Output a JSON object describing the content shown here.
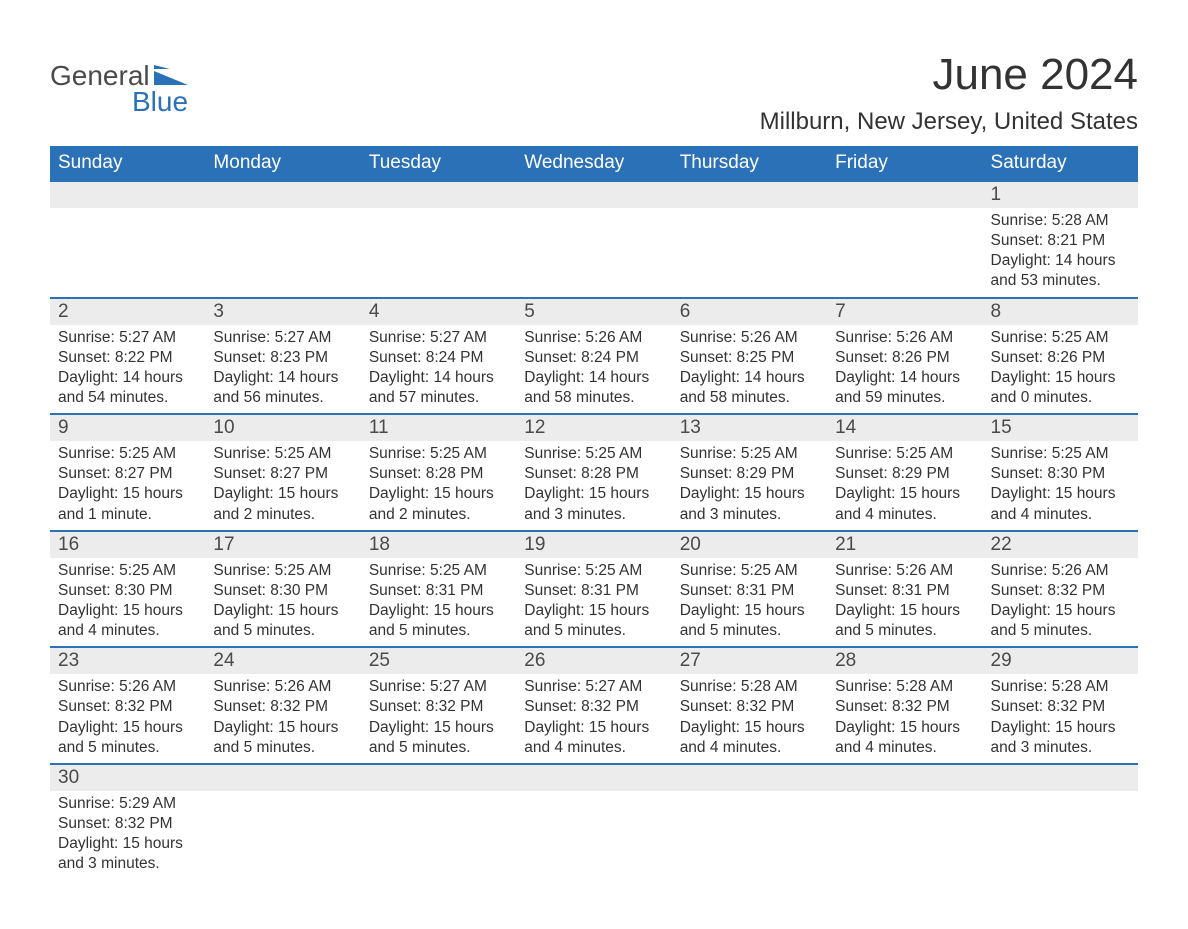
{
  "logo": {
    "word1": "General",
    "word2": "Blue"
  },
  "title": "June 2024",
  "location": "Millburn, New Jersey, United States",
  "colors": {
    "header_bg": "#2b71b8",
    "header_text": "#ffffff",
    "daynum_bg": "#ececec",
    "border": "#2b71b8",
    "logo_gray": "#4a4a4a",
    "logo_blue": "#2b71b8"
  },
  "columns": [
    "Sunday",
    "Monday",
    "Tuesday",
    "Wednesday",
    "Thursday",
    "Friday",
    "Saturday"
  ],
  "weeks": [
    [
      null,
      null,
      null,
      null,
      null,
      null,
      {
        "n": "1",
        "sr": "Sunrise: 5:28 AM",
        "ss": "Sunset: 8:21 PM",
        "d1": "Daylight: 14 hours",
        "d2": "and 53 minutes."
      }
    ],
    [
      {
        "n": "2",
        "sr": "Sunrise: 5:27 AM",
        "ss": "Sunset: 8:22 PM",
        "d1": "Daylight: 14 hours",
        "d2": "and 54 minutes."
      },
      {
        "n": "3",
        "sr": "Sunrise: 5:27 AM",
        "ss": "Sunset: 8:23 PM",
        "d1": "Daylight: 14 hours",
        "d2": "and 56 minutes."
      },
      {
        "n": "4",
        "sr": "Sunrise: 5:27 AM",
        "ss": "Sunset: 8:24 PM",
        "d1": "Daylight: 14 hours",
        "d2": "and 57 minutes."
      },
      {
        "n": "5",
        "sr": "Sunrise: 5:26 AM",
        "ss": "Sunset: 8:24 PM",
        "d1": "Daylight: 14 hours",
        "d2": "and 58 minutes."
      },
      {
        "n": "6",
        "sr": "Sunrise: 5:26 AM",
        "ss": "Sunset: 8:25 PM",
        "d1": "Daylight: 14 hours",
        "d2": "and 58 minutes."
      },
      {
        "n": "7",
        "sr": "Sunrise: 5:26 AM",
        "ss": "Sunset: 8:26 PM",
        "d1": "Daylight: 14 hours",
        "d2": "and 59 minutes."
      },
      {
        "n": "8",
        "sr": "Sunrise: 5:25 AM",
        "ss": "Sunset: 8:26 PM",
        "d1": "Daylight: 15 hours",
        "d2": "and 0 minutes."
      }
    ],
    [
      {
        "n": "9",
        "sr": "Sunrise: 5:25 AM",
        "ss": "Sunset: 8:27 PM",
        "d1": "Daylight: 15 hours",
        "d2": "and 1 minute."
      },
      {
        "n": "10",
        "sr": "Sunrise: 5:25 AM",
        "ss": "Sunset: 8:27 PM",
        "d1": "Daylight: 15 hours",
        "d2": "and 2 minutes."
      },
      {
        "n": "11",
        "sr": "Sunrise: 5:25 AM",
        "ss": "Sunset: 8:28 PM",
        "d1": "Daylight: 15 hours",
        "d2": "and 2 minutes."
      },
      {
        "n": "12",
        "sr": "Sunrise: 5:25 AM",
        "ss": "Sunset: 8:28 PM",
        "d1": "Daylight: 15 hours",
        "d2": "and 3 minutes."
      },
      {
        "n": "13",
        "sr": "Sunrise: 5:25 AM",
        "ss": "Sunset: 8:29 PM",
        "d1": "Daylight: 15 hours",
        "d2": "and 3 minutes."
      },
      {
        "n": "14",
        "sr": "Sunrise: 5:25 AM",
        "ss": "Sunset: 8:29 PM",
        "d1": "Daylight: 15 hours",
        "d2": "and 4 minutes."
      },
      {
        "n": "15",
        "sr": "Sunrise: 5:25 AM",
        "ss": "Sunset: 8:30 PM",
        "d1": "Daylight: 15 hours",
        "d2": "and 4 minutes."
      }
    ],
    [
      {
        "n": "16",
        "sr": "Sunrise: 5:25 AM",
        "ss": "Sunset: 8:30 PM",
        "d1": "Daylight: 15 hours",
        "d2": "and 4 minutes."
      },
      {
        "n": "17",
        "sr": "Sunrise: 5:25 AM",
        "ss": "Sunset: 8:30 PM",
        "d1": "Daylight: 15 hours",
        "d2": "and 5 minutes."
      },
      {
        "n": "18",
        "sr": "Sunrise: 5:25 AM",
        "ss": "Sunset: 8:31 PM",
        "d1": "Daylight: 15 hours",
        "d2": "and 5 minutes."
      },
      {
        "n": "19",
        "sr": "Sunrise: 5:25 AM",
        "ss": "Sunset: 8:31 PM",
        "d1": "Daylight: 15 hours",
        "d2": "and 5 minutes."
      },
      {
        "n": "20",
        "sr": "Sunrise: 5:25 AM",
        "ss": "Sunset: 8:31 PM",
        "d1": "Daylight: 15 hours",
        "d2": "and 5 minutes."
      },
      {
        "n": "21",
        "sr": "Sunrise: 5:26 AM",
        "ss": "Sunset: 8:31 PM",
        "d1": "Daylight: 15 hours",
        "d2": "and 5 minutes."
      },
      {
        "n": "22",
        "sr": "Sunrise: 5:26 AM",
        "ss": "Sunset: 8:32 PM",
        "d1": "Daylight: 15 hours",
        "d2": "and 5 minutes."
      }
    ],
    [
      {
        "n": "23",
        "sr": "Sunrise: 5:26 AM",
        "ss": "Sunset: 8:32 PM",
        "d1": "Daylight: 15 hours",
        "d2": "and 5 minutes."
      },
      {
        "n": "24",
        "sr": "Sunrise: 5:26 AM",
        "ss": "Sunset: 8:32 PM",
        "d1": "Daylight: 15 hours",
        "d2": "and 5 minutes."
      },
      {
        "n": "25",
        "sr": "Sunrise: 5:27 AM",
        "ss": "Sunset: 8:32 PM",
        "d1": "Daylight: 15 hours",
        "d2": "and 5 minutes."
      },
      {
        "n": "26",
        "sr": "Sunrise: 5:27 AM",
        "ss": "Sunset: 8:32 PM",
        "d1": "Daylight: 15 hours",
        "d2": "and 4 minutes."
      },
      {
        "n": "27",
        "sr": "Sunrise: 5:28 AM",
        "ss": "Sunset: 8:32 PM",
        "d1": "Daylight: 15 hours",
        "d2": "and 4 minutes."
      },
      {
        "n": "28",
        "sr": "Sunrise: 5:28 AM",
        "ss": "Sunset: 8:32 PM",
        "d1": "Daylight: 15 hours",
        "d2": "and 4 minutes."
      },
      {
        "n": "29",
        "sr": "Sunrise: 5:28 AM",
        "ss": "Sunset: 8:32 PM",
        "d1": "Daylight: 15 hours",
        "d2": "and 3 minutes."
      }
    ],
    [
      {
        "n": "30",
        "sr": "Sunrise: 5:29 AM",
        "ss": "Sunset: 8:32 PM",
        "d1": "Daylight: 15 hours",
        "d2": "and 3 minutes."
      },
      null,
      null,
      null,
      null,
      null,
      null
    ]
  ]
}
